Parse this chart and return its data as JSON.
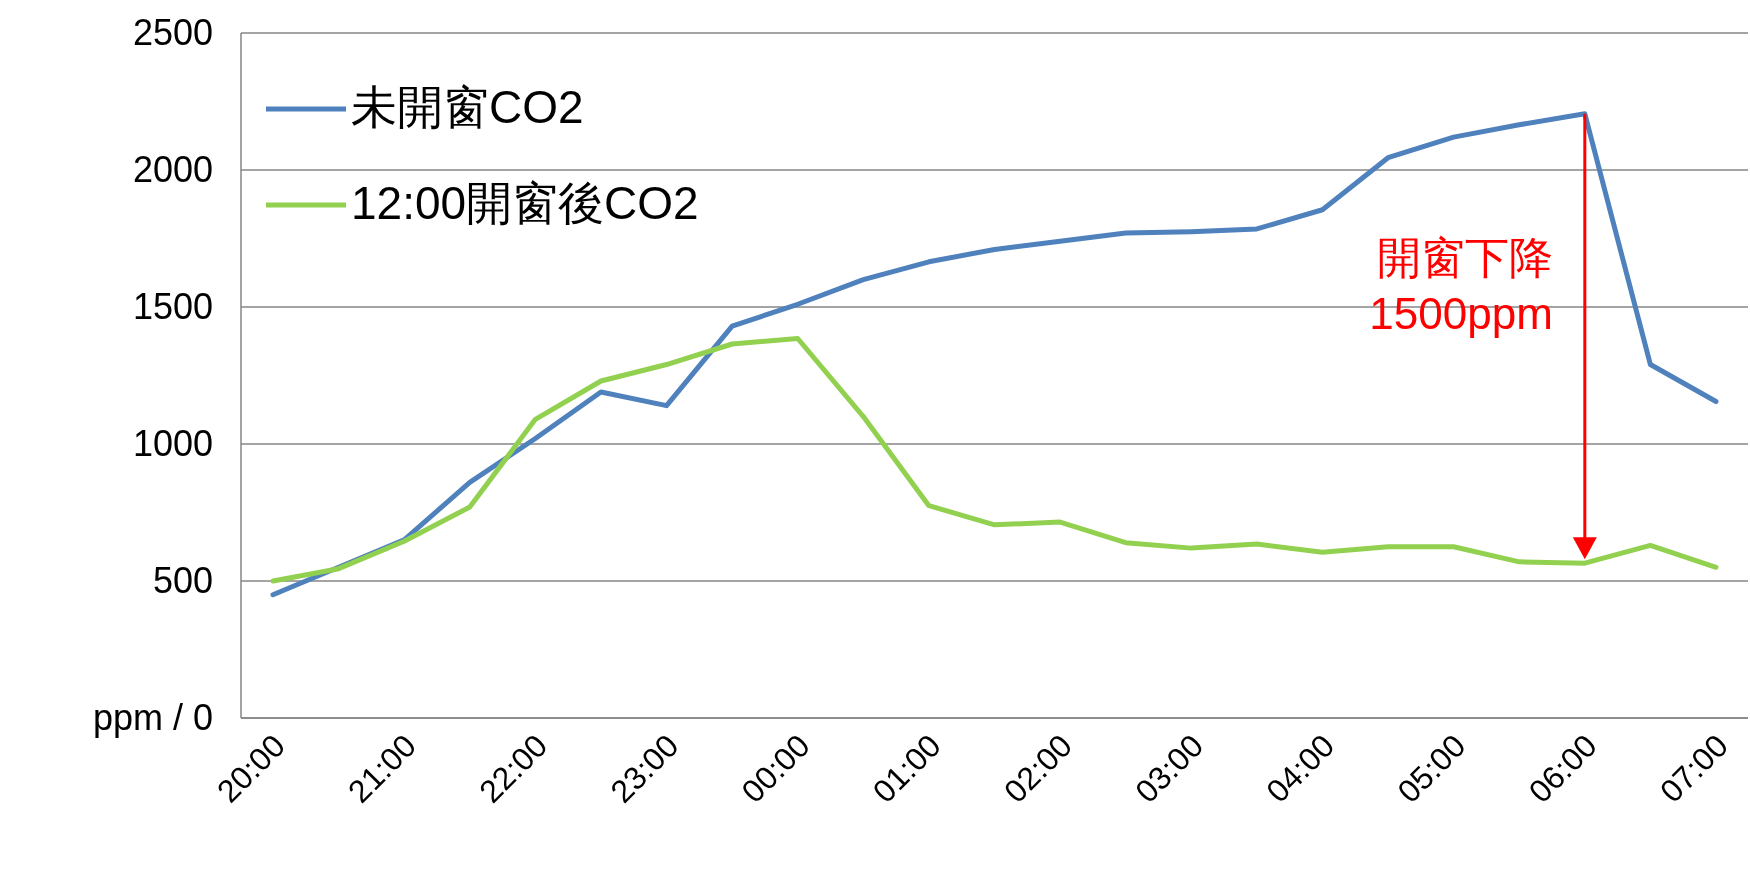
{
  "chart_data": {
    "type": "line",
    "categories": [
      "20:00",
      null,
      "21:00",
      null,
      "22:00",
      null,
      "23:00",
      null,
      "00:00",
      null,
      "01:00",
      null,
      "02:00",
      null,
      "03:00",
      null,
      "04:00",
      null,
      "05:00",
      null,
      "06:00",
      null,
      "07:00"
    ],
    "series": [
      {
        "name": "未開窗CO2",
        "color": "#4f81bd",
        "values": [
          450,
          550,
          650,
          860,
          1020,
          1190,
          1140,
          1430,
          1510,
          1600,
          1665,
          1710,
          1740,
          1770,
          1775,
          1785,
          1855,
          2045,
          2120,
          2165,
          2205,
          1290,
          1155
        ]
      },
      {
        "name": "12:00開窗後CO2",
        "color": "#92d050",
        "values": [
          500,
          545,
          645,
          770,
          1090,
          1230,
          1290,
          1365,
          1385,
          1100,
          775,
          705,
          715,
          640,
          620,
          635,
          605,
          625,
          625,
          570,
          565,
          630,
          550
        ]
      }
    ],
    "ylim": [
      0,
      2500
    ],
    "yticks": [
      {
        "value": 0,
        "label": "ppm / 0"
      },
      500,
      1000,
      1500,
      2000,
      2500
    ],
    "grid": "y",
    "legend": "top left",
    "marker": "none",
    "line_style": "solid",
    "annotations": [
      {
        "text": "開窗下降\n1500ppm",
        "x": "06:00",
        "y": 2205
      }
    ]
  }
}
